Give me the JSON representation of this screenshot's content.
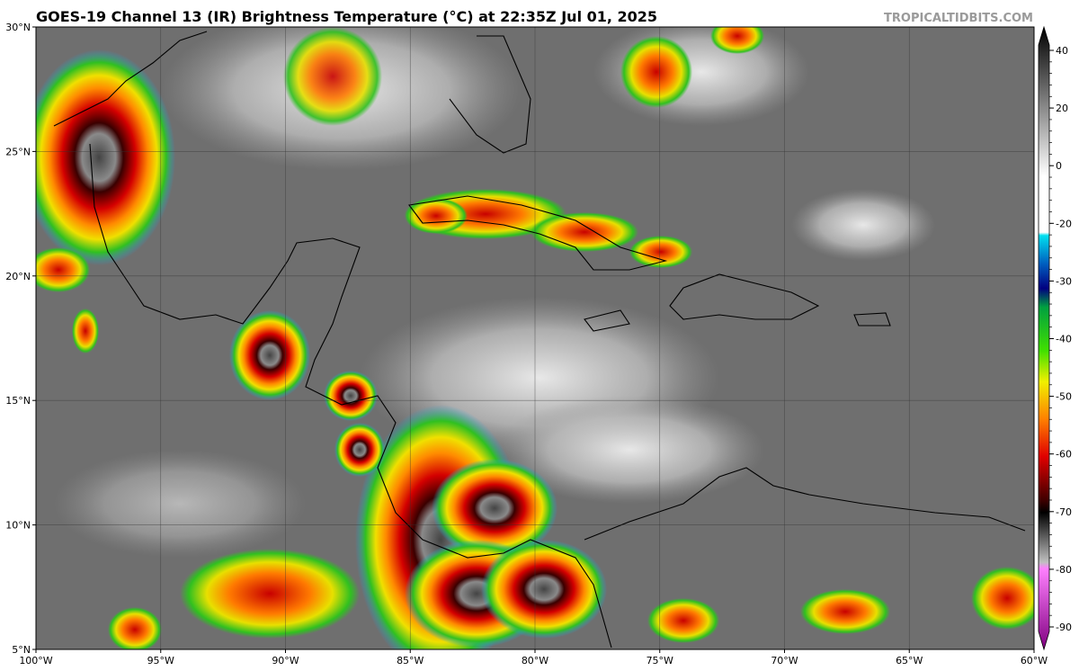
{
  "map": {
    "title": "GOES-19 Channel 13 (IR) Brightness Temperature (°C) at 22:35Z Jul 01, 2025",
    "credit": "TROPICALTIDBITS.COM",
    "lon_ticks": [
      {
        "value": -100,
        "label": "100°W"
      },
      {
        "value": -95,
        "label": "95°W"
      },
      {
        "value": -90,
        "label": "90°W"
      },
      {
        "value": -85,
        "label": "85°W"
      },
      {
        "value": -80,
        "label": "80°W"
      },
      {
        "value": -75,
        "label": "75°W"
      },
      {
        "value": -70,
        "label": "70°W"
      },
      {
        "value": -65,
        "label": "65°W"
      },
      {
        "value": -60,
        "label": "60°W"
      }
    ],
    "lat_ticks": [
      {
        "value": 5,
        "label": "5°N"
      },
      {
        "value": 10,
        "label": "10°N"
      },
      {
        "value": 15,
        "label": "15°N"
      },
      {
        "value": 20,
        "label": "20°N"
      },
      {
        "value": 25,
        "label": "25°N"
      },
      {
        "value": 30,
        "label": "30°N"
      }
    ],
    "colorbar_ticks": [
      40,
      20,
      0,
      -20,
      -30,
      -40,
      -50,
      -60,
      -70,
      -80,
      -90
    ]
  }
}
